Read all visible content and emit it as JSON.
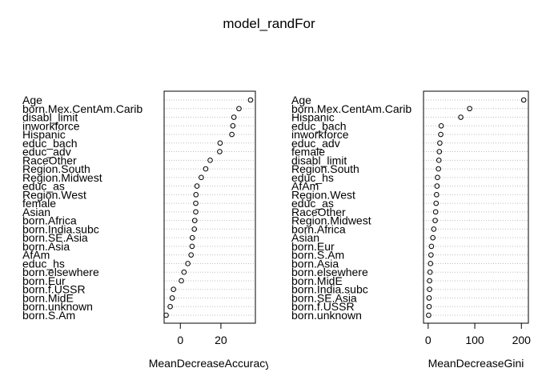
{
  "title": "model_randFor",
  "chart_data": [
    {
      "type": "dotchart",
      "xlabel": "MeanDecreaseAccuracy",
      "xlim": [
        -8,
        37
      ],
      "ticks": [
        0,
        20
      ],
      "tick_labels": [
        "0",
        "20"
      ],
      "grid": "dotted horizontal lines",
      "categories": [
        "Age",
        "born.Mex.CentAm.Carib",
        "disabl_limit",
        "inworkforce",
        "Hispanic",
        "educ_bach",
        "educ_adv",
        "RaceOther",
        "Region.South",
        "Region.Midwest",
        "educ_as",
        "Region.West",
        "female",
        "Asian",
        "born.Africa",
        "born.India.subc",
        "born.SE.Asia",
        "born.Asia",
        "AfAm",
        "educ_hs",
        "born.elsewhere",
        "born.Eur",
        "born.f.USSR",
        "born.MidE",
        "born.unknown",
        "born.S.Am"
      ],
      "values": [
        34.6,
        28.9,
        26.4,
        25.9,
        25.4,
        19.6,
        19.4,
        14.7,
        12.5,
        10.3,
        8.2,
        7.7,
        7.6,
        7.6,
        7.1,
        6.9,
        5.9,
        5.8,
        5.3,
        3.7,
        1.8,
        0.5,
        -3.4,
        -4.0,
        -5.0,
        -7.0
      ]
    },
    {
      "type": "dotchart",
      "xlabel": "MeanDecreaseGini",
      "xlim": [
        -10,
        215
      ],
      "ticks": [
        0,
        100,
        200
      ],
      "tick_labels": [
        "0",
        "100",
        "200"
      ],
      "grid": "dotted horizontal lines",
      "categories": [
        "Age",
        "born.Mex.CentAm.Carib",
        "Hispanic",
        "educ_bach",
        "inworkforce",
        "educ_adv",
        "female",
        "disabl_limit",
        "Region.South",
        "educ_hs",
        "AfAm",
        "Region.West",
        "educ_as",
        "RaceOther",
        "Region.Midwest",
        "born.Africa",
        "Asian",
        "born.Eur",
        "born.S.Am",
        "born.Asia",
        "born.elsewhere",
        "born.MidE",
        "born.India.subc",
        "born.SE.Asia",
        "born.f.USSR",
        "born.unknown"
      ],
      "values": [
        205,
        89,
        70,
        28,
        27,
        25,
        24,
        23,
        22,
        20,
        19,
        18,
        17,
        16,
        15,
        12,
        10,
        7,
        6,
        5,
        4,
        3,
        3,
        2,
        2,
        1
      ]
    }
  ]
}
